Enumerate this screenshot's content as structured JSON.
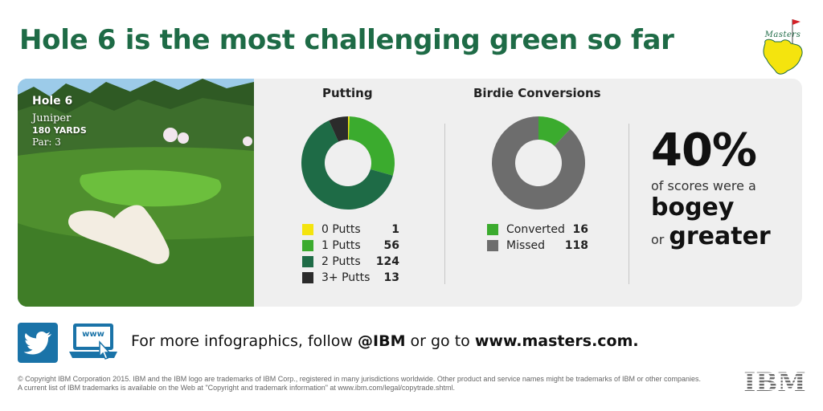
{
  "headline": "Hole 6 is the most challenging green so far",
  "logo": {
    "text": "Masters"
  },
  "hole": {
    "title": "Hole 6",
    "name": "Juniper",
    "yards": "180 YARDS",
    "par": "Par: 3"
  },
  "putting": {
    "title": "Putting"
  },
  "birdie": {
    "title": "Birdie Conversions"
  },
  "colors": {
    "zero_putts": "#f4e40e",
    "one_putt": "#3bab2e",
    "two_putts": "#1e6b46",
    "three_plus_putts": "#2b2b2b",
    "converted": "#3bab2e",
    "missed": "#6d6d6d",
    "headline": "#1e6b46"
  },
  "chart_data": [
    {
      "type": "pie",
      "title": "Putting",
      "categories": [
        "0 Putts",
        "1 Putts",
        "2 Putts",
        "3+ Putts"
      ],
      "values": [
        1,
        56,
        124,
        13
      ]
    },
    {
      "type": "pie",
      "title": "Birdie Conversions",
      "categories": [
        "Converted",
        "Missed"
      ],
      "values": [
        16,
        118
      ]
    }
  ],
  "stat": {
    "percent": "40%",
    "line1": "of scores were a",
    "word1": "bogey",
    "connector": "or",
    "word2": "greater"
  },
  "footer": {
    "web_icon_text": "www",
    "text_prefix": "For more infographics, follow ",
    "handle": "@IBM",
    "text_middle": " or go to ",
    "site": "www.masters.com."
  },
  "copyright": {
    "line1": "© Copyright IBM Corporation 2015. IBM and the IBM logo are trademarks of IBM Corp., registered in many jurisdictions worldwide. Other product and service names might be trademarks of IBM or other companies.",
    "line2": "A current list of IBM trademarks is available on the Web at \"Copyright and trademark information\" at www.ibm.com/legal/copytrade.shtml."
  },
  "ibm_logo": {
    "text": "IBM"
  }
}
